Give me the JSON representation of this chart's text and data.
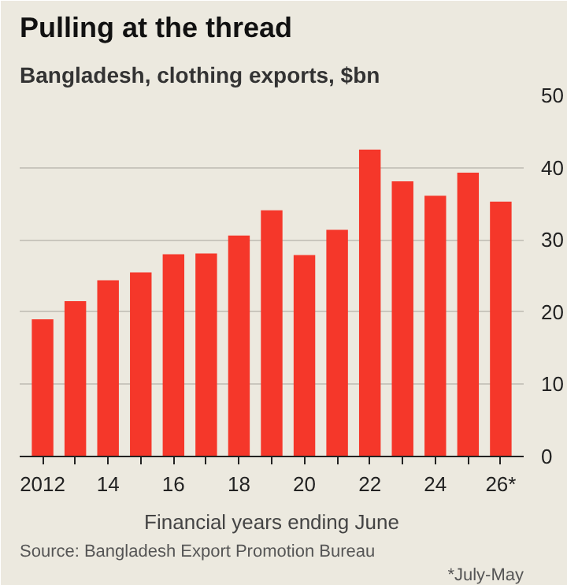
{
  "chart_data": {
    "type": "bar",
    "title": "Pulling at the thread",
    "subtitle": "Bangladesh, clothing exports, $bn",
    "xlabel": "Financial years ending June",
    "annotations": [
      "Source: Bangladesh Export Promotion Bureau",
      "*July-May"
    ],
    "categories": [
      "2012",
      null,
      "14",
      null,
      "16",
      null,
      "18",
      null,
      "20",
      null,
      "22",
      null,
      "24",
      null,
      "26*"
    ],
    "values": [
      19.0,
      21.5,
      24.4,
      25.5,
      28.0,
      28.1,
      30.6,
      34.1,
      27.9,
      31.4,
      42.5,
      38.1,
      36.1,
      39.3,
      35.3
    ],
    "color": "#f5372a",
    "ylim": [
      0,
      50
    ],
    "yticks": [
      0,
      10,
      20,
      30,
      40,
      50
    ],
    "grid": "y"
  }
}
